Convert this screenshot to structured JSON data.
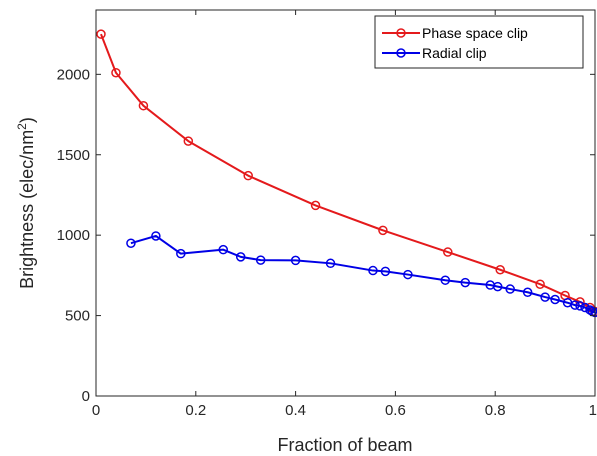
{
  "chart_data": {
    "type": "line",
    "xlabel": "Fraction of beam",
    "ylabel": "Brightness (elec/nm",
    "ylabel_sup": "2",
    "ylabel_close": ")",
    "xlim": [
      0,
      1
    ],
    "ylim": [
      0,
      2400
    ],
    "xticks": [
      0,
      0.2,
      0.4,
      0.6,
      0.8,
      1
    ],
    "xtick_labels": [
      "0",
      "0.2",
      "0.4",
      "0.6",
      "0.8",
      "1"
    ],
    "yticks": [
      0,
      500,
      1000,
      1500,
      2000
    ],
    "ytick_labels": [
      "0",
      "500",
      "1000",
      "1500",
      "2000"
    ],
    "grid": false,
    "legend_position": "top-right",
    "series": [
      {
        "name": "Phase space clip",
        "color": "#e41a1c",
        "x": [
          0.01,
          0.04,
          0.095,
          0.185,
          0.305,
          0.44,
          0.575,
          0.705,
          0.81,
          0.89,
          0.94,
          0.97,
          0.99,
          1.0
        ],
        "y": [
          2250,
          2010,
          1805,
          1585,
          1370,
          1185,
          1030,
          895,
          785,
          695,
          625,
          585,
          550,
          525
        ]
      },
      {
        "name": "Radial clip",
        "color": "#0000e6",
        "x": [
          0.07,
          0.12,
          0.17,
          0.255,
          0.29,
          0.33,
          0.4,
          0.47,
          0.555,
          0.58,
          0.625,
          0.7,
          0.74,
          0.79,
          0.805,
          0.83,
          0.865,
          0.9,
          0.92,
          0.945,
          0.96,
          0.97,
          0.98,
          0.99,
          0.995,
          1.0
        ],
        "y": [
          950,
          995,
          885,
          910,
          865,
          845,
          843,
          825,
          780,
          775,
          755,
          720,
          705,
          690,
          680,
          665,
          645,
          615,
          600,
          580,
          565,
          560,
          550,
          535,
          525,
          520
        ]
      }
    ]
  }
}
